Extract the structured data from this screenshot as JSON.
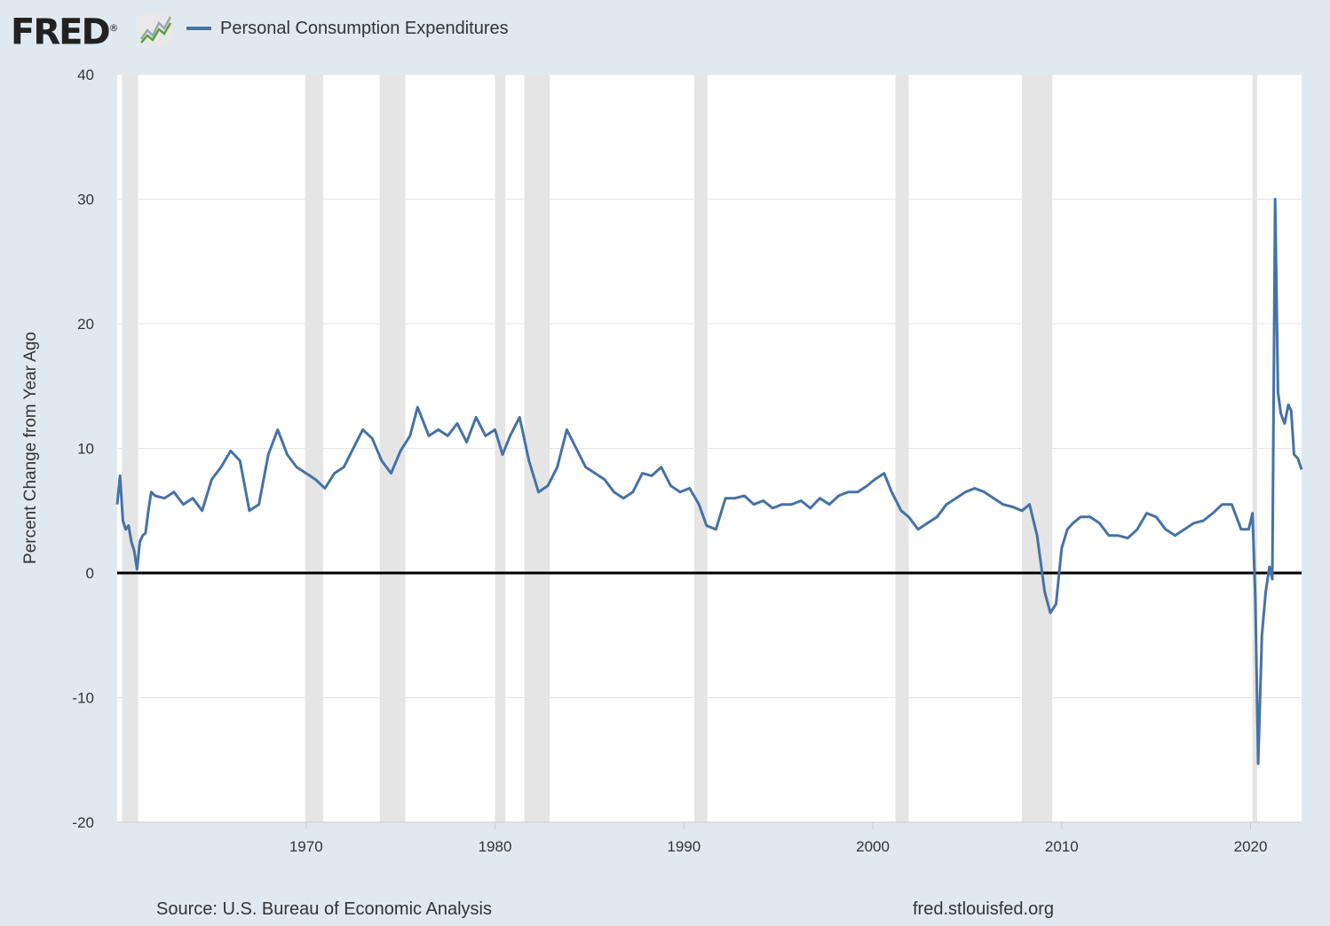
{
  "header": {
    "logo_text": "FRED",
    "logo_trademark": "®"
  },
  "chart_data": {
    "type": "line",
    "title": "",
    "series": [
      {
        "name": "Personal Consumption Expenditures",
        "color": "#4572a7",
        "x": [
          1960.0,
          1960.15,
          1960.3,
          1960.45,
          1960.6,
          1960.75,
          1960.9,
          1961.05,
          1961.2,
          1961.35,
          1961.5,
          1961.65,
          1961.8,
          1962.0,
          1962.5,
          1963.0,
          1963.5,
          1964.0,
          1964.5,
          1965.0,
          1965.5,
          1966.0,
          1966.5,
          1967.0,
          1967.5,
          1968.0,
          1968.5,
          1969.0,
          1969.5,
          1970.0,
          1970.5,
          1971.0,
          1971.5,
          1972.0,
          1972.5,
          1973.0,
          1973.5,
          1974.0,
          1974.5,
          1975.0,
          1975.5,
          1975.9,
          1976.5,
          1977.0,
          1977.5,
          1978.0,
          1978.5,
          1979.0,
          1979.5,
          1980.0,
          1980.4,
          1980.8,
          1981.3,
          1981.8,
          1982.3,
          1982.8,
          1983.3,
          1983.8,
          1984.3,
          1984.8,
          1985.3,
          1985.8,
          1986.3,
          1986.8,
          1987.3,
          1987.8,
          1988.3,
          1988.8,
          1989.3,
          1989.8,
          1990.3,
          1990.8,
          1991.2,
          1991.7,
          1992.2,
          1992.7,
          1993.2,
          1993.7,
          1994.2,
          1994.7,
          1995.2,
          1995.7,
          1996.2,
          1996.7,
          1997.2,
          1997.7,
          1998.2,
          1998.7,
          1999.2,
          1999.7,
          2000.1,
          2000.6,
          2001.0,
          2001.5,
          2001.9,
          2002.4,
          2002.9,
          2003.4,
          2003.9,
          2004.4,
          2004.9,
          2005.4,
          2005.9,
          2006.4,
          2006.9,
          2007.4,
          2007.9,
          2008.3,
          2008.7,
          2009.1,
          2009.4,
          2009.7,
          2010.0,
          2010.3,
          2010.6,
          2011.0,
          2011.5,
          2012.0,
          2012.5,
          2013.0,
          2013.5,
          2014.0,
          2014.5,
          2015.0,
          2015.5,
          2016.0,
          2016.5,
          2017.0,
          2017.5,
          2018.0,
          2018.5,
          2019.0,
          2019.5,
          2019.9,
          2020.1,
          2020.25,
          2020.4,
          2020.6,
          2020.8,
          2021.0,
          2021.15,
          2021.3,
          2021.45,
          2021.6,
          2021.8,
          2022.0,
          2022.15,
          2022.3,
          2022.5,
          2022.7
        ],
        "y": [
          5.5,
          7.8,
          4.2,
          3.5,
          3.8,
          2.5,
          1.8,
          0.3,
          2.5,
          3.0,
          3.2,
          5.0,
          6.5,
          6.2,
          6.0,
          6.5,
          5.5,
          6.0,
          5.0,
          7.5,
          8.5,
          9.8,
          9.0,
          5.0,
          5.5,
          9.5,
          11.5,
          9.5,
          8.5,
          8.0,
          7.5,
          6.8,
          8.0,
          8.5,
          10.0,
          11.5,
          10.8,
          9.0,
          8.0,
          9.8,
          11.0,
          13.3,
          11.0,
          11.5,
          11.0,
          12.0,
          10.5,
          12.5,
          11.0,
          11.5,
          9.5,
          11.0,
          12.5,
          9.0,
          6.5,
          7.0,
          8.5,
          11.5,
          10.0,
          8.5,
          8.0,
          7.5,
          6.5,
          6.0,
          6.5,
          8.0,
          7.8,
          8.5,
          7.0,
          6.5,
          6.8,
          5.5,
          3.8,
          3.5,
          6.0,
          6.0,
          6.2,
          5.5,
          5.8,
          5.2,
          5.5,
          5.5,
          5.8,
          5.2,
          6.0,
          5.5,
          6.2,
          6.5,
          6.5,
          7.0,
          7.5,
          8.0,
          6.5,
          5.0,
          4.5,
          3.5,
          4.0,
          4.5,
          5.5,
          6.0,
          6.5,
          6.8,
          6.5,
          6.0,
          5.5,
          5.3,
          5.0,
          5.5,
          3.0,
          -1.5,
          -3.2,
          -2.5,
          2.0,
          3.5,
          4.0,
          4.5,
          4.5,
          4.0,
          3.0,
          3.0,
          2.8,
          3.5,
          4.8,
          4.5,
          3.5,
          3.0,
          3.5,
          4.0,
          4.2,
          4.8,
          5.5,
          5.5,
          3.5,
          3.5,
          4.8,
          -2.0,
          -15.3,
          -5.0,
          -1.5,
          0.5,
          -0.5,
          30.0,
          14.5,
          12.8,
          12.0,
          13.5,
          13.0,
          9.5,
          9.2,
          8.3
        ]
      }
    ],
    "xlabel": "",
    "ylabel": "Percent Change from Year Ago",
    "xlim": [
      1960.0,
      2022.7
    ],
    "ylim": [
      -20,
      40
    ],
    "x_ticks": [
      1970,
      1980,
      1990,
      2000,
      2010,
      2020
    ],
    "x_tick_labels": [
      "1970",
      "1980",
      "1990",
      "2000",
      "2010",
      "2020"
    ],
    "y_ticks": [
      -20,
      -10,
      0,
      10,
      20,
      30,
      40
    ],
    "y_tick_labels": [
      "-20",
      "-10",
      "0",
      "10",
      "20",
      "30",
      "40"
    ],
    "recessions": [
      [
        1960.25,
        1961.1
      ],
      [
        1969.95,
        1970.9
      ],
      [
        1973.9,
        1975.25
      ],
      [
        1980.0,
        1980.55
      ],
      [
        1981.55,
        1982.9
      ],
      [
        1990.55,
        1991.25
      ],
      [
        2001.2,
        2001.9
      ],
      [
        2007.9,
        2009.5
      ],
      [
        2020.1,
        2020.35
      ]
    ],
    "zero_line": 0,
    "legend": "top-left",
    "grid": true
  },
  "footer": {
    "source": "Source: U.S. Bureau of Economic Analysis",
    "url": "fred.stlouisfed.org"
  },
  "colors": {
    "background": "#e1e9f0",
    "plot_background": "#ffffff",
    "recession": "#e5e5e5",
    "series": "#4572a7"
  }
}
